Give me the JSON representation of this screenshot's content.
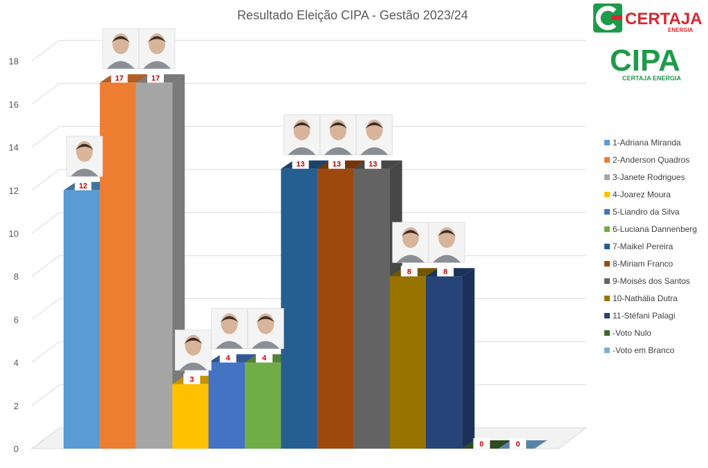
{
  "chart_data": {
    "type": "bar",
    "title": "Resultado Eleição CIPA - Gestão 2023/24",
    "categories": [
      "1-Adriana Miranda",
      "2-Anderson Quadros",
      "3-Janete Rodrigues",
      "4-Joarez Moura",
      "5-Liandro da Silva",
      "6-Luciana Dannenberg",
      "7-Maikel Pereira",
      "8-Miriam Franco",
      "9-Moisés dos Santos",
      "10-Nathália Dutra",
      "11-Stéfani Palagi",
      "-Voto Nulo",
      "-Voto em Branco"
    ],
    "values": [
      12,
      17,
      17,
      3,
      4,
      4,
      13,
      13,
      13,
      8,
      8,
      0,
      0
    ],
    "colors": [
      "#5b9bd5",
      "#ed7d31",
      "#a5a5a5",
      "#ffc000",
      "#4472c4",
      "#70ad47",
      "#255e91",
      "#9e480e",
      "#636363",
      "#997300",
      "#264478",
      "#43682b",
      "#7cafdd"
    ],
    "side_colors": [
      "#41739f",
      "#b25e24",
      "#7a7a7a",
      "#c49300",
      "#335694",
      "#538236",
      "#1a446a",
      "#74350a",
      "#474747",
      "#715500",
      "#1b3158",
      "#2f4a1f",
      "#5a83a8"
    ],
    "yticks": [
      0,
      2,
      4,
      6,
      8,
      10,
      12,
      14,
      16,
      18
    ],
    "ylim": [
      0,
      18
    ],
    "grid": true,
    "legend_position": "right"
  },
  "logos": {
    "certaja": {
      "text": "CERTAJA",
      "sub": "ENERGIA"
    },
    "cipa": {
      "text": "CIPA",
      "sub": "CERTAJA ENERGIA"
    }
  },
  "colors": {
    "brand_green": "#1f9a4a",
    "brand_red": "#d9272e",
    "label_red": "#c00000"
  }
}
